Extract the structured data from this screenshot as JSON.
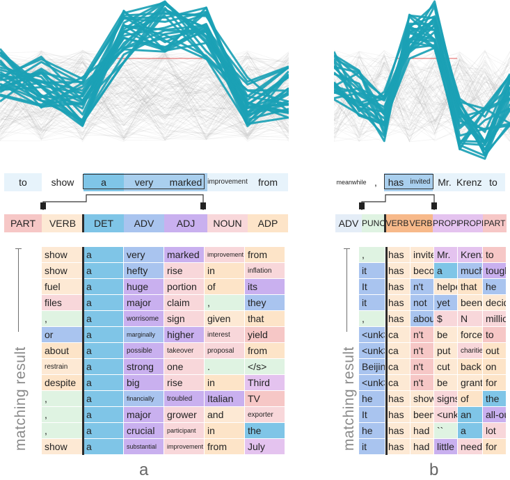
{
  "colors": {
    "PART": "#f6c7c6",
    "VERB": "#fde9d4",
    "DET": "#7fc5e7",
    "ADV": "#a9c4ef",
    "ADJ": "#c9b0ef",
    "NOUN": "#f8d7da",
    "ADP": "#fde4c8",
    "PUNCT": "#dff3e2",
    "PROPN": "#e4c3ef",
    "token_bg": "#e7f3fb",
    "line_main": "#1ba1b5",
    "line_bg": "#9a9a9a",
    "line_red": "#e25c5c"
  },
  "panel_a": {
    "letter": "a",
    "axis_label": "matching result",
    "tokens": [
      "to",
      "show",
      "a",
      "very",
      "marked",
      "improvement",
      "from"
    ],
    "pos": [
      "PART",
      "VERB",
      "DET",
      "ADV",
      "ADJ",
      "NOUN",
      "ADP"
    ],
    "rows": [
      [
        "show",
        "a",
        "very",
        "marked",
        "improvement",
        "from"
      ],
      [
        "show",
        "a",
        "hefty",
        "rise",
        "in",
        "inflation"
      ],
      [
        "fuel",
        "a",
        "huge",
        "portion",
        "of",
        "its"
      ],
      [
        "files",
        "a",
        "major",
        "claim",
        ",",
        "they"
      ],
      [
        ",",
        "a",
        "worrisome",
        "sign",
        "given",
        "that"
      ],
      [
        "or",
        "a",
        "marginally",
        "higher",
        "interest",
        "yield"
      ],
      [
        "about",
        "a",
        "possible",
        "takeover",
        "proposal",
        "from"
      ],
      [
        "restrain",
        "a",
        "strong",
        "one",
        ".",
        "</s>"
      ],
      [
        "despite",
        "a",
        "big",
        "rise",
        "in",
        "Third"
      ],
      [
        ",",
        "a",
        "financially",
        "troubled",
        "Italian",
        "TV"
      ],
      [
        ",",
        "a",
        "major",
        "grower",
        "and",
        "exporter"
      ],
      [
        ",",
        "a",
        "crucial",
        "participant",
        "in",
        "the"
      ],
      [
        "show",
        "a",
        "substantial",
        "improvement",
        "from",
        "July"
      ]
    ],
    "row_colors": [
      [
        "VERB",
        "DET",
        "ADV",
        "ADJ",
        "NOUN",
        "ADP"
      ],
      [
        "VERB",
        "DET",
        "ADV",
        "NOUN",
        "ADP",
        "NOUN"
      ],
      [
        "VERB",
        "DET",
        "ADJ",
        "NOUN",
        "ADP",
        "ADJ"
      ],
      [
        "NOUN",
        "DET",
        "ADJ",
        "NOUN",
        "PUNCT",
        "ADV"
      ],
      [
        "PUNCT",
        "DET",
        "ADJ",
        "NOUN",
        "VERB",
        "ADP"
      ],
      [
        "ADV",
        "DET",
        "ADV",
        "ADJ",
        "NOUN",
        "PART"
      ],
      [
        "ADP",
        "DET",
        "ADJ",
        "NOUN",
        "NOUN",
        "ADP"
      ],
      [
        "VERB",
        "DET",
        "ADJ",
        "NOUN",
        "PUNCT",
        "PUNCT"
      ],
      [
        "ADP",
        "DET",
        "ADJ",
        "NOUN",
        "ADP",
        "PROPN"
      ],
      [
        "PUNCT",
        "DET",
        "ADV",
        "ADJ",
        "ADJ",
        "PART"
      ],
      [
        "PUNCT",
        "DET",
        "ADJ",
        "NOUN",
        "VERB",
        "NOUN"
      ],
      [
        "PUNCT",
        "DET",
        "ADJ",
        "NOUN",
        "ADP",
        "DET"
      ],
      [
        "VERB",
        "DET",
        "ADJ",
        "NOUN",
        "ADP",
        "PROPN"
      ]
    ]
  },
  "panel_b": {
    "letter": "b",
    "axis_label": "matching result",
    "tokens": [
      "meanwhile",
      ",",
      "has",
      "invited",
      "Mr.",
      "Krenz",
      "to"
    ],
    "pos": [
      "ADV",
      "PUNCT",
      "VERB",
      "VERB",
      "PROPN",
      "PROPN",
      "PART"
    ],
    "rows": [
      [
        ",",
        "has",
        "invited",
        "Mr.",
        "Krenz",
        "to"
      ],
      [
        "it",
        "has",
        "become",
        "a",
        "much",
        "tougher"
      ],
      [
        "It",
        "has",
        "n't",
        "helped",
        "that",
        "he"
      ],
      [
        "it",
        "has",
        "not",
        "yet",
        "been",
        "decided"
      ],
      [
        ",",
        "has",
        "about",
        "$",
        "N",
        "million"
      ],
      [
        "<unk>",
        "ca",
        "n't",
        "be",
        "forced",
        "to"
      ],
      [
        "<unk>",
        "ca",
        "n't",
        "put",
        "charities",
        "out"
      ],
      [
        "Beijing",
        "ca",
        "n't",
        "cut",
        "back",
        "on"
      ],
      [
        "<unk>",
        "ca",
        "n't",
        "be",
        "granted",
        "for"
      ],
      [
        "he",
        "has",
        "shown",
        "signs",
        "of",
        "the"
      ],
      [
        "It",
        "has",
        "been",
        "<unk>",
        "an",
        "all-out"
      ],
      [
        "he",
        "has",
        "had",
        "``",
        "a",
        "lot"
      ],
      [
        "it",
        "has",
        "had",
        "little",
        "need",
        "for"
      ]
    ],
    "row_colors": [
      [
        "PUNCT",
        "VERB",
        "VERB",
        "PROPN",
        "PROPN",
        "PART"
      ],
      [
        "ADV",
        "VERB",
        "VERB",
        "DET",
        "ADV",
        "ADJ"
      ],
      [
        "ADV",
        "VERB",
        "ADV",
        "VERB",
        "ADP",
        "ADV"
      ],
      [
        "ADV",
        "VERB",
        "ADV",
        "ADV",
        "VERB",
        "VERB"
      ],
      [
        "PUNCT",
        "VERB",
        "ADV",
        "NOUN",
        "NOUN",
        "NOUN"
      ],
      [
        "ADV",
        "VERB",
        "PART",
        "VERB",
        "VERB",
        "PART"
      ],
      [
        "ADV",
        "VERB",
        "PART",
        "VERB",
        "NOUN",
        "ADP"
      ],
      [
        "ADV",
        "VERB",
        "PART",
        "VERB",
        "ADP",
        "ADP"
      ],
      [
        "ADV",
        "VERB",
        "PART",
        "VERB",
        "VERB",
        "ADP"
      ],
      [
        "ADV",
        "VERB",
        "VERB",
        "NOUN",
        "ADP",
        "DET"
      ],
      [
        "ADV",
        "VERB",
        "VERB",
        "NOUN",
        "DET",
        "ADJ"
      ],
      [
        "ADV",
        "VERB",
        "VERB",
        "PUNCT",
        "DET",
        "NOUN"
      ],
      [
        "ADV",
        "VERB",
        "VERB",
        "ADJ",
        "NOUN",
        "ADP"
      ]
    ]
  }
}
